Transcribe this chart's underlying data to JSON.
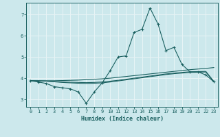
{
  "xlabel": "Humidex (Indice chaleur)",
  "bg_color": "#cce8ec",
  "line_color": "#1a6060",
  "grid_color": "#e8f4f6",
  "x_data": [
    0,
    1,
    2,
    3,
    4,
    5,
    6,
    7,
    8,
    9,
    10,
    11,
    12,
    13,
    14,
    15,
    16,
    17,
    18,
    19,
    20,
    21,
    22,
    23
  ],
  "y_main": [
    3.88,
    3.82,
    3.75,
    3.6,
    3.55,
    3.5,
    3.35,
    2.82,
    3.35,
    3.78,
    4.35,
    5.0,
    5.05,
    6.15,
    6.3,
    7.3,
    6.55,
    5.3,
    5.45,
    4.65,
    4.3,
    4.3,
    4.15,
    3.83
  ],
  "y_line1": [
    3.88,
    3.88,
    3.88,
    3.88,
    3.89,
    3.9,
    3.91,
    3.93,
    3.95,
    3.97,
    4.0,
    4.04,
    4.08,
    4.12,
    4.16,
    4.2,
    4.24,
    4.28,
    4.32,
    4.36,
    4.4,
    4.43,
    4.46,
    4.5
  ],
  "y_line2": [
    3.88,
    3.87,
    3.86,
    3.83,
    3.8,
    3.78,
    3.76,
    3.75,
    3.76,
    3.78,
    3.82,
    3.87,
    3.92,
    3.97,
    4.02,
    4.07,
    4.12,
    4.17,
    4.21,
    4.24,
    4.27,
    4.28,
    4.29,
    3.83
  ],
  "y_line3": [
    3.88,
    3.87,
    3.86,
    3.84,
    3.82,
    3.81,
    3.8,
    3.79,
    3.8,
    3.82,
    3.86,
    3.9,
    3.95,
    4.0,
    4.05,
    4.1,
    4.15,
    4.2,
    4.24,
    4.27,
    4.3,
    4.31,
    4.32,
    3.85
  ],
  "ylim": [
    2.65,
    7.55
  ],
  "xlim": [
    -0.5,
    23.5
  ],
  "yticks": [
    3,
    4,
    5,
    6,
    7
  ],
  "xticks": [
    0,
    1,
    2,
    3,
    4,
    5,
    6,
    7,
    8,
    9,
    10,
    11,
    12,
    13,
    14,
    15,
    16,
    17,
    18,
    19,
    20,
    21,
    22,
    23
  ]
}
